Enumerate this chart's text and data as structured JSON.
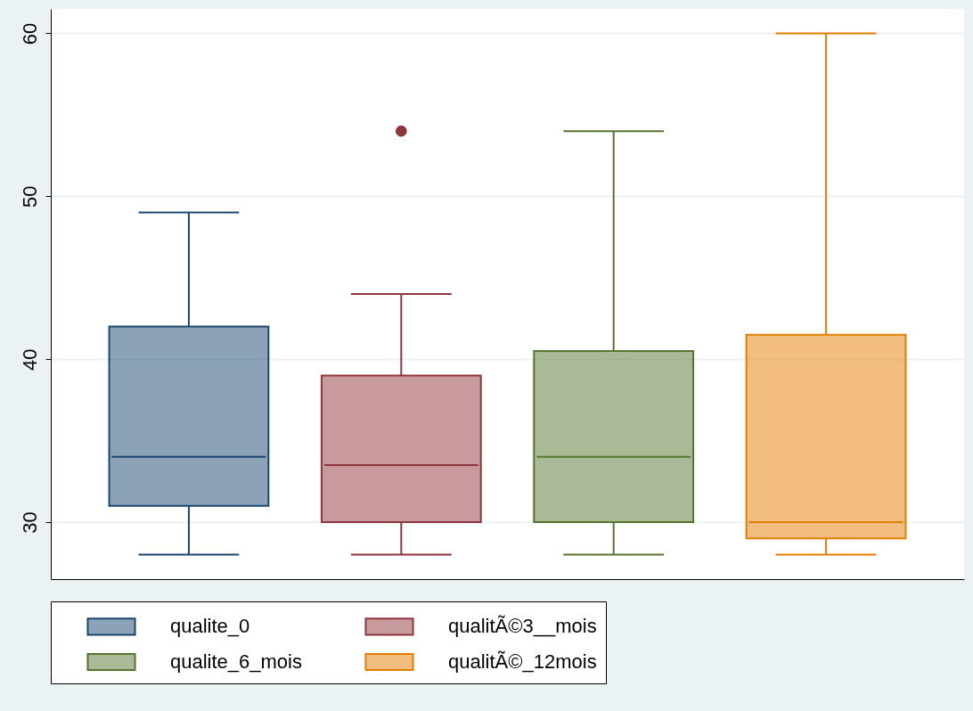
{
  "chart_data": {
    "type": "box",
    "categories": [
      null
    ],
    "series": [
      {
        "name": "qualite_0",
        "color": "#1a476f",
        "boxes": [
          {
            "low": 28,
            "q1": 31,
            "median": 34,
            "q3": 42,
            "high": 49
          }
        ]
      },
      {
        "name": "qualitÃ©3__mois",
        "color": "#90353b",
        "boxes": [
          {
            "low": 28,
            "q1": 30,
            "median": 33.5,
            "q3": 39,
            "high": 44,
            "outliers": [
              54
            ]
          }
        ]
      },
      {
        "name": "qualite_6_mois",
        "color": "#55752f",
        "boxes": [
          {
            "low": 28,
            "q1": 30,
            "median": 34,
            "q3": 40.5,
            "high": 54
          }
        ]
      },
      {
        "name": "qualitÃ©_12mois",
        "color": "#e37e00",
        "boxes": [
          {
            "low": 28,
            "q1": 29,
            "median": 30,
            "q3": 41.5,
            "high": 60
          }
        ]
      }
    ],
    "ylim": [
      26.5,
      61.5
    ],
    "yticks": [
      30,
      40,
      50,
      60
    ],
    "grid": "y",
    "legend": "bottom",
    "tick_labels": "y"
  }
}
